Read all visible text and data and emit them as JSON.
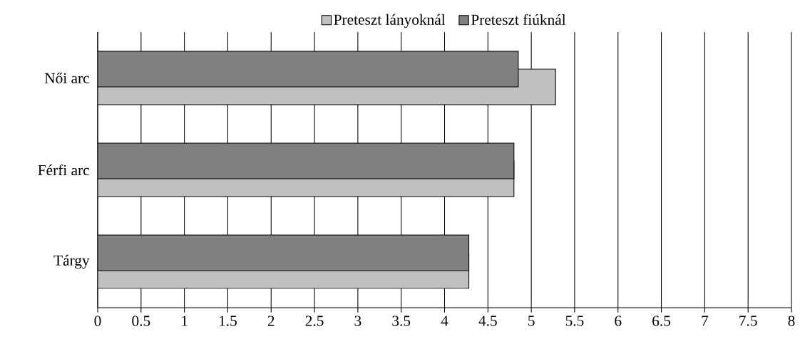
{
  "chart_data": {
    "type": "bar",
    "orientation": "horizontal",
    "categories": [
      "Női arc",
      "Férfi arc",
      "Tárgy"
    ],
    "series": [
      {
        "name": "Preteszt lányoknál",
        "color": "#c0c0c0",
        "values": [
          5.28,
          4.8,
          4.28
        ]
      },
      {
        "name": "Preteszt fiúknál",
        "color": "#808080",
        "values": [
          4.85,
          4.8,
          4.28
        ]
      }
    ],
    "xlim": [
      0,
      8
    ],
    "xticks": [
      0,
      0.5,
      1,
      1.5,
      2,
      2.5,
      3,
      3.5,
      4,
      4.5,
      5,
      5.5,
      6,
      6.5,
      7,
      7.5,
      8
    ],
    "grid": "x",
    "legend": "top"
  }
}
